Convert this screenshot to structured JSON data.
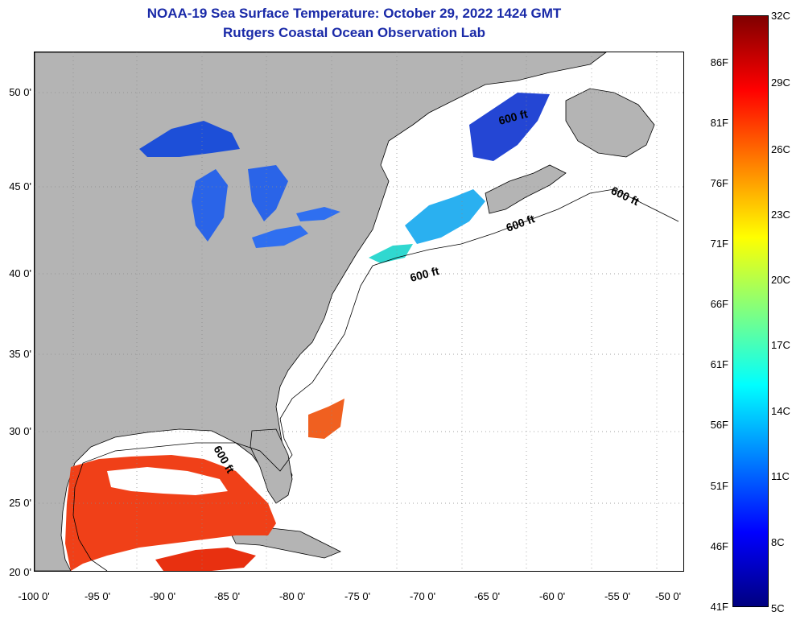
{
  "header": {
    "title": "NOAA-19 Sea Surface Temperature:  October 29, 2022 1424 GMT",
    "subtitle": "Rutgers Coastal Ocean Observation Lab"
  },
  "map": {
    "lat_labels": [
      "50 0'",
      "45 0'",
      "40 0'",
      "35 0'",
      "30 0'",
      "25 0'",
      "20 0'"
    ],
    "lon_labels": [
      "-100 0'",
      "-95 0'",
      "-90 0'",
      "-85 0'",
      "-80 0'",
      "-75 0'",
      "-70 0'",
      "-65 0'",
      "-60 0'",
      "-55 0'",
      "-50 0'"
    ],
    "depth_labels": [
      "600 ft",
      "600 ft",
      "600 ft",
      "600 ft",
      "600 ft"
    ]
  },
  "colorbar": {
    "fahrenheit": [
      "86F",
      "81F",
      "76F",
      "71F",
      "66F",
      "61F",
      "56F",
      "51F",
      "46F",
      "41F"
    ],
    "celsius": [
      "32C",
      "29C",
      "26C",
      "23C",
      "20C",
      "17C",
      "14C",
      "11C",
      "8C",
      "5C"
    ],
    "colors": [
      "#000080",
      "#0000ff",
      "#0080ff",
      "#00ffff",
      "#80ff80",
      "#ffff00",
      "#ff8000",
      "#ff0000",
      "#800000"
    ]
  },
  "colors": {
    "land": "#b4b4b4",
    "title": "#1a2aa8",
    "cold_water": "#1d4fd8",
    "gulf_water": "#f04018"
  }
}
